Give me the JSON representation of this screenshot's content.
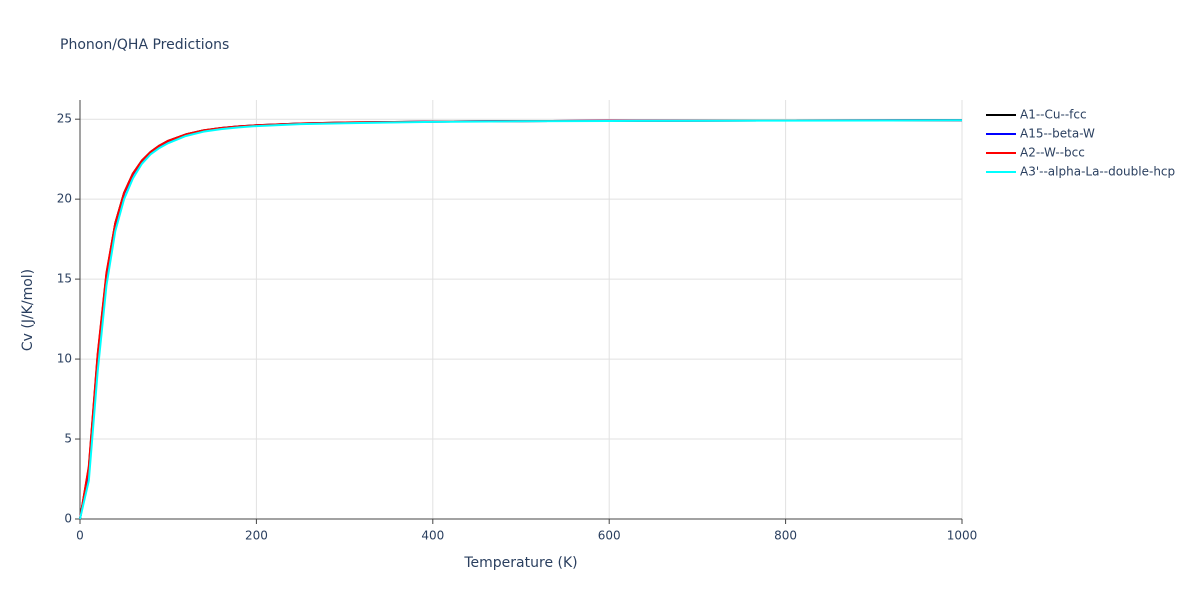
{
  "chart_data": {
    "type": "line",
    "title": "Phonon/QHA Predictions",
    "x_label": "Temperature (K)",
    "y_label": "Cv (J/K/mol)",
    "x": [
      0,
      10,
      20,
      30,
      40,
      50,
      60,
      70,
      80,
      90,
      100,
      120,
      140,
      160,
      180,
      200,
      250,
      300,
      400,
      500,
      600,
      800,
      1000
    ],
    "series": [
      {
        "name": "A1--Cu--fcc",
        "color": "#000000",
        "values": [
          0,
          3.2,
          10.2,
          15.3,
          18.5,
          20.4,
          21.6,
          22.4,
          22.95,
          23.35,
          23.65,
          24.05,
          24.3,
          24.45,
          24.55,
          24.62,
          24.73,
          24.79,
          24.85,
          24.88,
          24.9,
          24.92,
          24.93
        ]
      },
      {
        "name": "A15--beta-W",
        "color": "#0000ff",
        "values": [
          0,
          3.0,
          10.0,
          15.2,
          18.4,
          20.35,
          21.55,
          22.38,
          22.93,
          23.33,
          23.63,
          24.03,
          24.28,
          24.44,
          24.54,
          24.61,
          24.72,
          24.78,
          24.85,
          24.88,
          24.9,
          24.92,
          24.93
        ]
      },
      {
        "name": "A2--W--bcc",
        "color": "#ff0000",
        "values": [
          0,
          3.3,
          10.3,
          15.4,
          18.5,
          20.4,
          21.6,
          22.4,
          22.95,
          23.35,
          23.65,
          24.05,
          24.3,
          24.45,
          24.55,
          24.62,
          24.73,
          24.79,
          24.85,
          24.88,
          24.9,
          24.92,
          24.93
        ]
      },
      {
        "name": "A3'--alpha-La--double-hcp",
        "color": "#00ffff",
        "values": [
          0,
          2.4,
          9.2,
          14.6,
          18.0,
          20.0,
          21.3,
          22.2,
          22.8,
          23.2,
          23.5,
          23.95,
          24.22,
          24.38,
          24.49,
          24.57,
          24.69,
          24.75,
          24.83,
          24.87,
          24.89,
          24.91,
          24.93
        ]
      }
    ],
    "xlim": [
      0,
      1000
    ],
    "xticks": [
      0,
      200,
      400,
      600,
      800,
      1000
    ],
    "ylim": [
      0,
      26.2
    ],
    "yticks": [
      0,
      5,
      10,
      15,
      20,
      25
    ],
    "grid": true,
    "legend": "right"
  }
}
